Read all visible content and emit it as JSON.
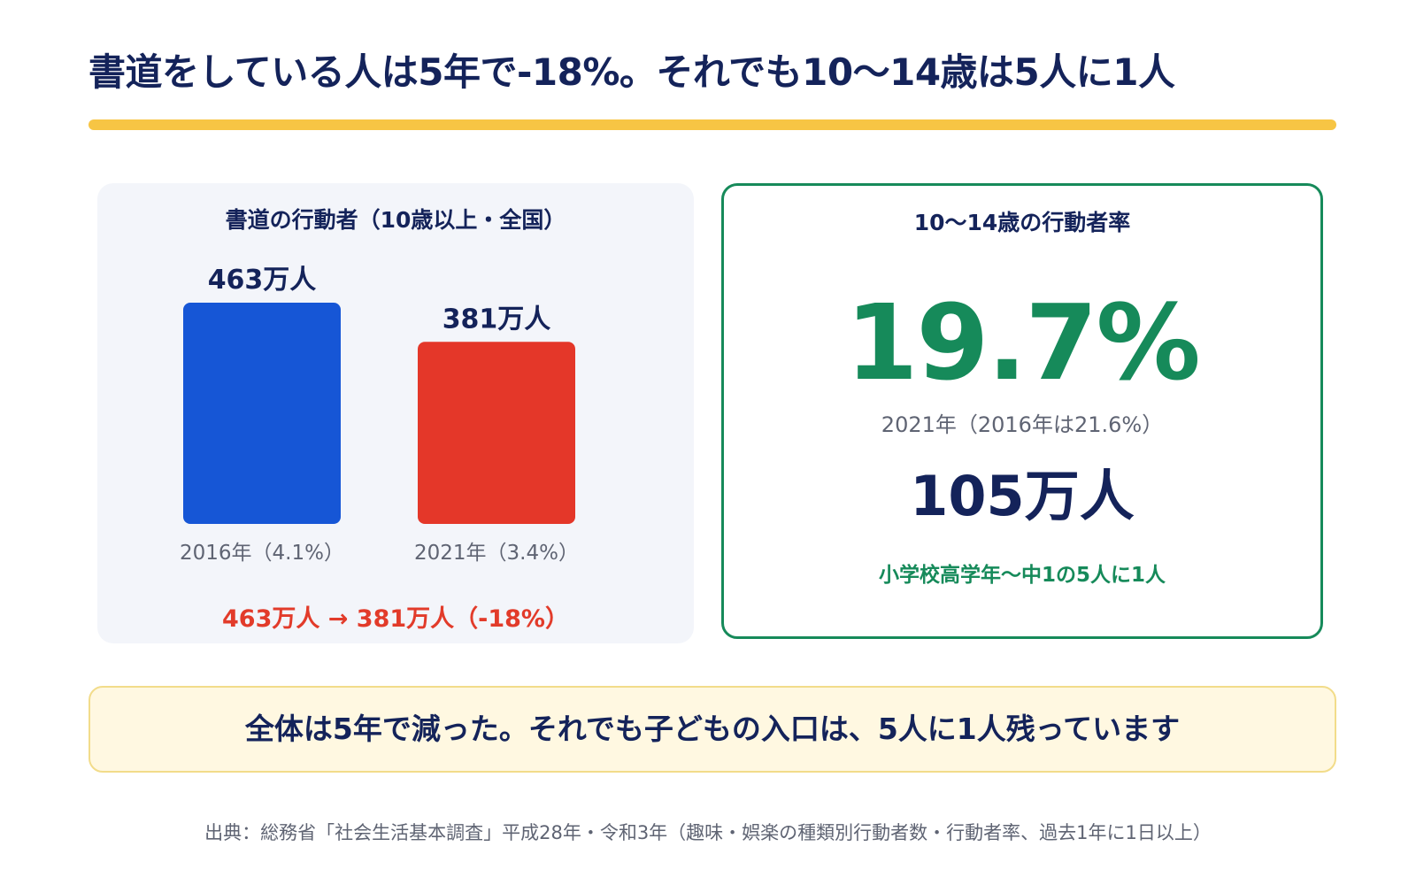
{
  "title": "書道をしている人は5年で-18%。それでも10〜14歳は5人に1人",
  "left_panel": {
    "title": "書道の行動者（10歳以上・全国）",
    "summary": "463万人 → 381万人（-18%）"
  },
  "right_panel": {
    "title": "10〜14歳の行動者率",
    "rate": "19.7%",
    "rate_note": "2021年（2016年は21.6%）",
    "count": "105万人",
    "count_note": "小学校高学年〜中1の5人に1人"
  },
  "callout": "全体は5年で減った。それでも子どもの入口は、5人に1人残っています",
  "source": "出典：総務省「社会生活基本調査」平成28年・令和3年（趣味・娯楽の種類別行動者数・行動者率、過去1年に1日以上）",
  "colors": {
    "navy": "#14235a",
    "blue_bar": "#1656d6",
    "red_bar": "#e43729",
    "green": "#168a5a",
    "yellow": "#f7c544"
  },
  "chart_data": {
    "type": "bar",
    "categories": [
      "2016年（4.1%）",
      "2021年（3.4%）"
    ],
    "values": [
      463,
      381
    ],
    "value_labels": [
      "463万人",
      "381万人"
    ],
    "bar_colors": [
      "#1656d6",
      "#e43729"
    ],
    "unit": "万人",
    "title": "書道の行動者（10歳以上・全国）",
    "xlabel": "",
    "ylabel": "",
    "ylim": [
      0,
      463
    ]
  }
}
